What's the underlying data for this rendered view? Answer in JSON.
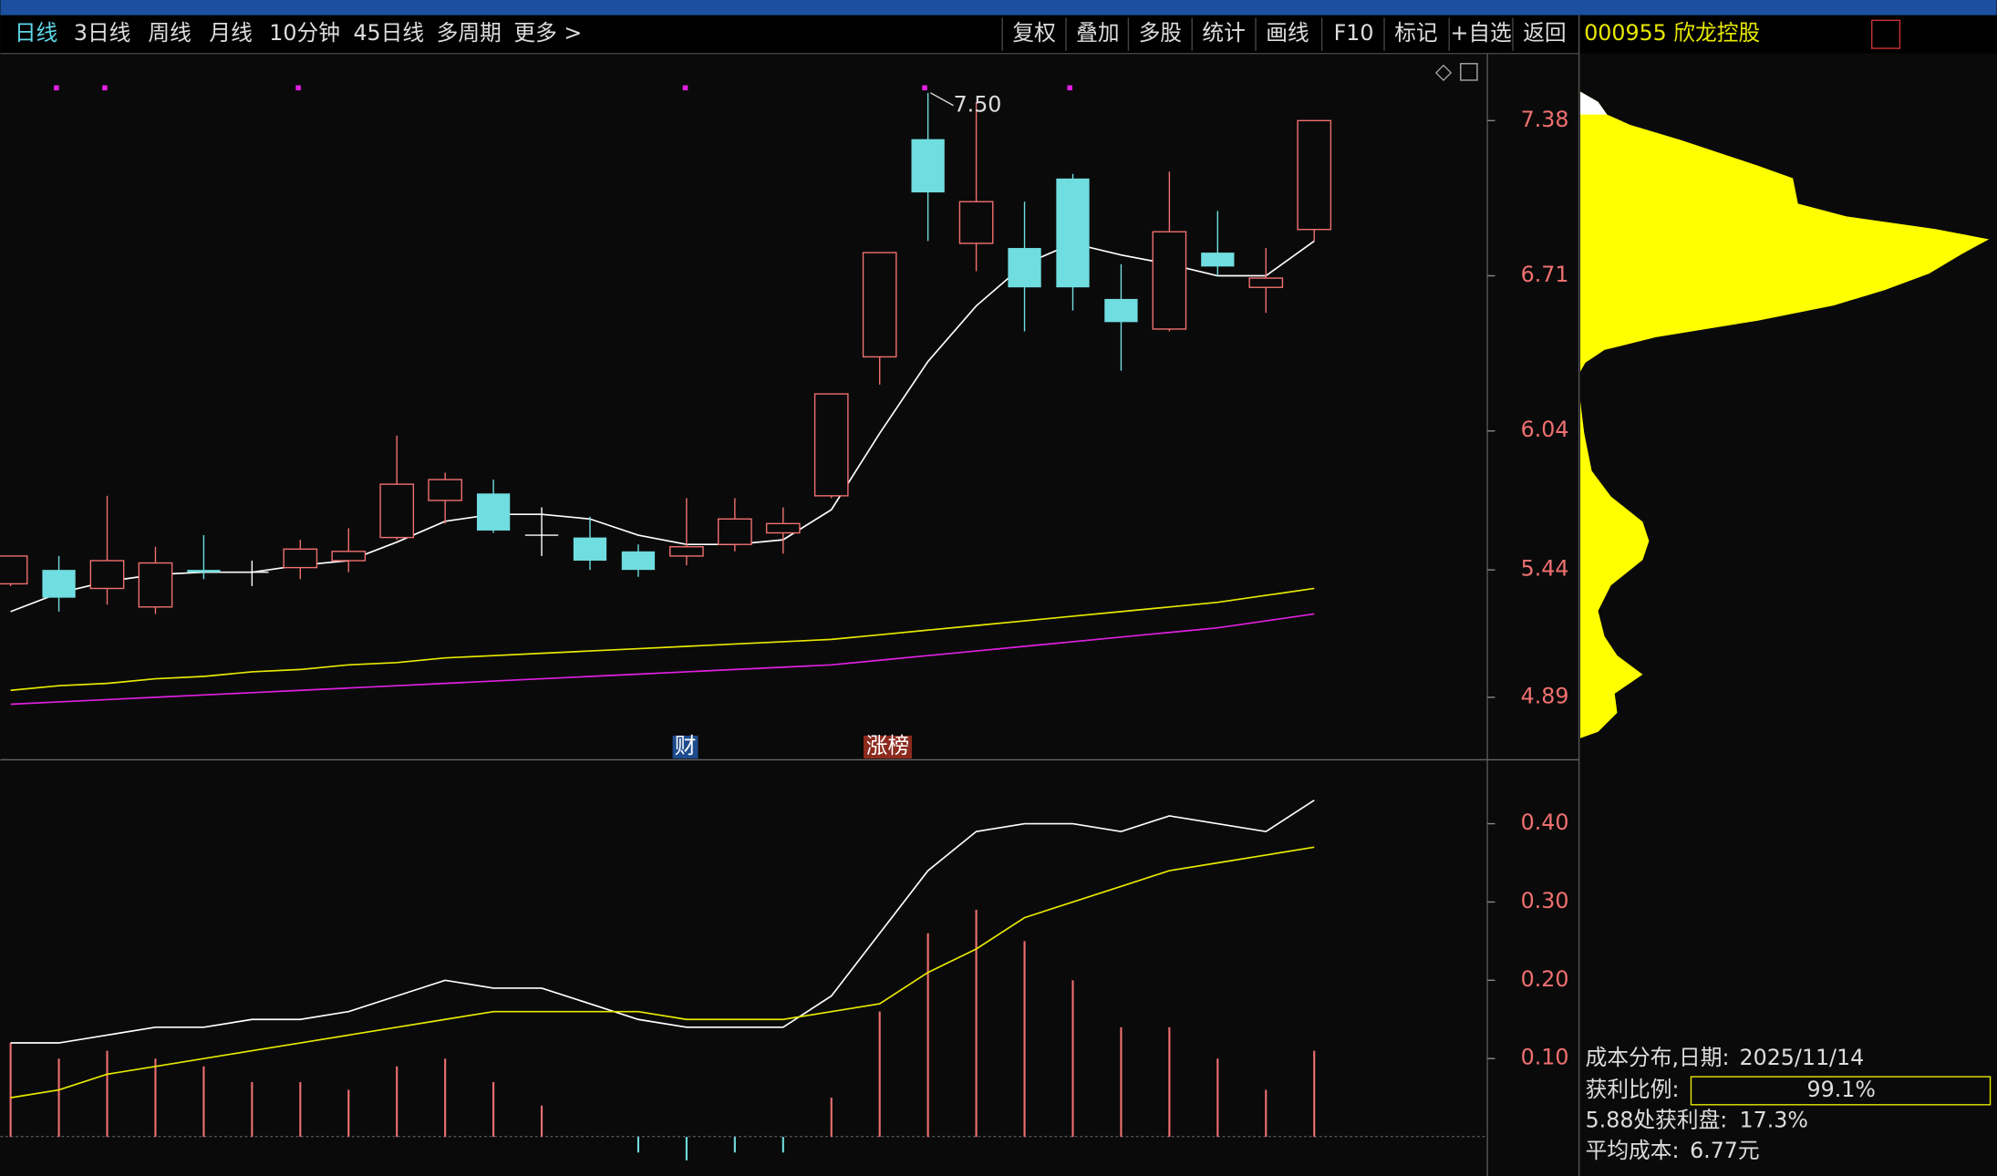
{
  "toolbar": {
    "tabs": [
      "日线",
      "3日线",
      "周线",
      "月线",
      "10分钟",
      "45日线",
      "多周期",
      "更多 >"
    ],
    "buttons": [
      "复权",
      "叠加",
      "多股",
      "统计",
      "画线",
      "F10",
      "标记",
      "+自选",
      "返回"
    ],
    "stock": "000955 欣龙控股"
  },
  "price_panel": {
    "ylim": [
      4.62,
      7.67
    ],
    "yticks": [
      7.38,
      6.71,
      6.04,
      5.44,
      4.89
    ],
    "max_label": "7.50",
    "tags": [
      "财",
      "涨榜"
    ],
    "candles": [
      {
        "open": 5.38,
        "close": 5.5,
        "high": 5.5,
        "low": 5.37
      },
      {
        "open": 5.44,
        "close": 5.32,
        "high": 5.5,
        "low": 5.26
      },
      {
        "open": 5.36,
        "close": 5.48,
        "high": 5.76,
        "low": 5.29
      },
      {
        "open": 5.28,
        "close": 5.47,
        "high": 5.54,
        "low": 5.25
      },
      {
        "open": 5.44,
        "close": 5.43,
        "high": 5.59,
        "low": 5.4
      },
      {
        "open": 5.43,
        "close": 5.43,
        "high": 5.48,
        "low": 5.37
      },
      {
        "open": 5.45,
        "close": 5.53,
        "high": 5.57,
        "low": 5.4
      },
      {
        "open": 5.48,
        "close": 5.52,
        "high": 5.62,
        "low": 5.43
      },
      {
        "open": 5.58,
        "close": 5.81,
        "high": 6.02,
        "low": 5.57
      },
      {
        "open": 5.74,
        "close": 5.83,
        "high": 5.86,
        "low": 5.64
      },
      {
        "open": 5.77,
        "close": 5.61,
        "high": 5.83,
        "low": 5.6
      },
      {
        "open": 5.59,
        "close": 5.59,
        "high": 5.71,
        "low": 5.5
      },
      {
        "open": 5.58,
        "close": 5.48,
        "high": 5.67,
        "low": 5.44
      },
      {
        "open": 5.52,
        "close": 5.44,
        "high": 5.55,
        "low": 5.41
      },
      {
        "open": 5.5,
        "close": 5.54,
        "high": 5.75,
        "low": 5.46
      },
      {
        "open": 5.55,
        "close": 5.66,
        "high": 5.75,
        "low": 5.52
      },
      {
        "open": 5.6,
        "close": 5.64,
        "high": 5.71,
        "low": 5.51
      },
      {
        "open": 5.76,
        "close": 6.2,
        "high": 6.2,
        "low": 5.75
      },
      {
        "open": 6.36,
        "close": 6.81,
        "high": 6.81,
        "low": 6.24
      },
      {
        "open": 7.3,
        "close": 7.07,
        "high": 7.5,
        "low": 6.86
      },
      {
        "open": 6.85,
        "close": 7.03,
        "high": 7.46,
        "low": 6.73
      },
      {
        "open": 6.83,
        "close": 6.66,
        "high": 7.03,
        "low": 6.47
      },
      {
        "open": 7.13,
        "close": 6.66,
        "high": 7.15,
        "low": 6.56
      },
      {
        "open": 6.61,
        "close": 6.51,
        "high": 6.76,
        "low": 6.3
      },
      {
        "open": 6.48,
        "close": 6.9,
        "high": 7.16,
        "low": 6.47
      },
      {
        "open": 6.81,
        "close": 6.75,
        "high": 6.99,
        "low": 6.71
      },
      {
        "open": 6.66,
        "close": 6.7,
        "high": 6.83,
        "low": 6.55
      },
      {
        "open": 6.91,
        "close": 7.38,
        "high": 7.38,
        "low": 6.86
      }
    ],
    "lines": [
      {
        "color": "#ffffff",
        "values": [
          5.26,
          5.34,
          5.39,
          5.42,
          5.43,
          5.43,
          5.46,
          5.48,
          5.56,
          5.65,
          5.68,
          5.68,
          5.66,
          5.59,
          5.55,
          5.55,
          5.57,
          5.7,
          6.03,
          6.34,
          6.58,
          6.76,
          6.85,
          6.8,
          6.76,
          6.71,
          6.71,
          6.86
        ]
      },
      {
        "color": "#e8e800",
        "values": [
          4.92,
          4.94,
          4.95,
          4.97,
          4.98,
          5.0,
          5.01,
          5.03,
          5.04,
          5.06,
          5.07,
          5.08,
          5.09,
          5.1,
          5.11,
          5.12,
          5.13,
          5.14,
          5.16,
          5.18,
          5.2,
          5.22,
          5.24,
          5.26,
          5.28,
          5.3,
          5.33,
          5.36
        ]
      },
      {
        "color": "#e020e0",
        "values": [
          4.86,
          4.87,
          4.88,
          4.89,
          4.9,
          4.91,
          4.92,
          4.93,
          4.94,
          4.95,
          4.96,
          4.97,
          4.98,
          4.99,
          5.0,
          5.01,
          5.02,
          5.03,
          5.05,
          5.07,
          5.09,
          5.11,
          5.13,
          5.15,
          5.17,
          5.19,
          5.22,
          5.25
        ]
      }
    ]
  },
  "indicator_panel": {
    "ylim": [
      -0.05,
      0.48
    ],
    "yticks": [
      {
        "value": 0.4,
        "label": "0.40"
      },
      {
        "value": 0.3,
        "label": "0.30"
      },
      {
        "value": 0.2,
        "label": "0.20"
      },
      {
        "value": 0.1,
        "label": "0.10"
      }
    ],
    "bars": [
      0.12,
      0.1,
      0.11,
      0.1,
      0.09,
      0.07,
      0.07,
      0.06,
      0.09,
      0.1,
      0.07,
      0.04,
      0.0,
      -0.02,
      -0.03,
      -0.02,
      -0.02,
      0.05,
      0.16,
      0.26,
      0.29,
      0.25,
      0.2,
      0.14,
      0.14,
      0.1,
      0.06,
      0.11
    ],
    "lines": [
      {
        "color": "#ffffff",
        "values": [
          0.12,
          0.12,
          0.13,
          0.14,
          0.14,
          0.15,
          0.15,
          0.16,
          0.18,
          0.2,
          0.19,
          0.19,
          0.17,
          0.15,
          0.14,
          0.14,
          0.14,
          0.18,
          0.26,
          0.34,
          0.39,
          0.4,
          0.4,
          0.39,
          0.41,
          0.4,
          0.39,
          0.43
        ]
      },
      {
        "color": "#e8e800",
        "values": [
          0.05,
          0.06,
          0.08,
          0.09,
          0.1,
          0.11,
          0.12,
          0.13,
          0.14,
          0.15,
          0.16,
          0.16,
          0.16,
          0.16,
          0.15,
          0.15,
          0.15,
          0.16,
          0.17,
          0.21,
          0.24,
          0.28,
          0.3,
          0.32,
          0.34,
          0.35,
          0.36,
          0.37
        ]
      }
    ]
  },
  "cost_info": {
    "date_label": "成本分布,日期:",
    "date": "2025/11/14",
    "profit_label": "获利比例:",
    "profit": "99.1%",
    "at_label": "5.88处获利盘:",
    "at_value": "17.3%",
    "avg_label": "平均成本:",
    "avg": "6.77元"
  }
}
